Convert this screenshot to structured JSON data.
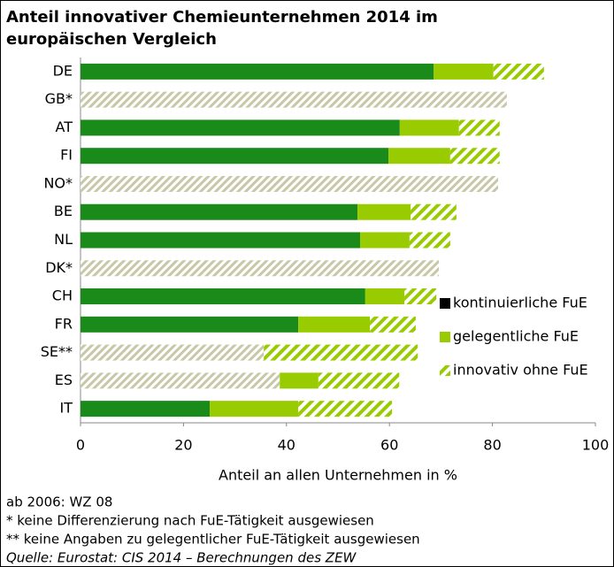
{
  "chart_data": {
    "type": "stacked-barh",
    "title_lines": [
      "Anteil innovativer Chemieunternehmen 2014 im",
      "europäischen Vergleich"
    ],
    "categories": [
      "DE",
      "GB*",
      "AT",
      "FI",
      "NO*",
      "BE",
      "NL",
      "DK*",
      "CH",
      "FR",
      "SE**",
      "ES",
      "IT"
    ],
    "series": [
      {
        "name": "kontinuierliche FuE",
        "color": "#1a8a1a",
        "pattern": "solid",
        "values": [
          68.6,
          null,
          62.0,
          59.8,
          null,
          53.8,
          54.3,
          null,
          55.3,
          42.3,
          null,
          null,
          25.1
        ]
      },
      {
        "color": "#c8c8a8",
        "pattern": "hatch",
        "values": [
          null,
          82.8,
          null,
          null,
          81.1,
          null,
          null,
          69.6,
          null,
          null,
          35.6,
          38.7,
          null
        ]
      },
      {
        "name": "gelegentliche FuE",
        "color": "#99cc00",
        "pattern": "solid",
        "values": [
          11.6,
          null,
          11.5,
          12.0,
          null,
          10.3,
          9.6,
          null,
          7.6,
          13.9,
          null,
          7.5,
          17.2
        ]
      },
      {
        "name": "innovativ ohne FuE",
        "color": "#99cc00",
        "pattern": "hatch",
        "values": [
          9.8,
          null,
          7.9,
          9.6,
          null,
          8.9,
          7.9,
          null,
          6.2,
          8.9,
          29.9,
          15.7,
          18.2
        ]
      }
    ],
    "xlim": [
      0,
      100
    ],
    "xticks": [
      0,
      20,
      40,
      60,
      80,
      100
    ],
    "xlabel": "Anteil an allen Unternehmen in %",
    "notes": [
      "ab 2006: WZ 08",
      "* keine Differenzierung nach FuE-Tätigkeit ausgewiesen",
      "** keine Angaben zu gelegentlicher FuE-Tätigkeit ausgewiesen",
      "Quelle: Eurostat: CIS 2014 – Berechnungen des ZEW"
    ]
  }
}
